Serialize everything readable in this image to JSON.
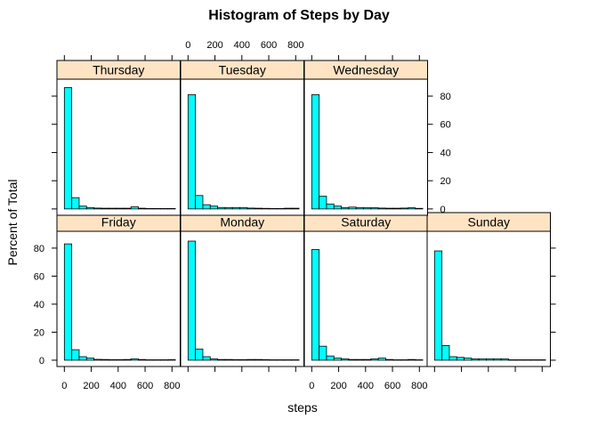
{
  "chart_data": {
    "type": "bar",
    "title": "Histogram of Steps by Day",
    "xlabel": "steps",
    "ylabel": "Percent of Total",
    "xlim": [
      -55,
      861
    ],
    "ylim": [
      -4.5,
      92
    ],
    "bin_width": 55,
    "bin_starts": [
      0,
      55,
      110,
      165,
      220,
      275,
      330,
      385,
      440,
      495,
      550,
      605,
      660,
      715,
      770
    ],
    "xticks": [
      0,
      200,
      400,
      600,
      800
    ],
    "yticks": [
      0,
      20,
      40,
      60,
      80
    ],
    "bar_color": "#00ffff",
    "strip_color": "#ffe4c4",
    "panels": [
      {
        "name": "Friday",
        "values": [
          83,
          7.5,
          2.5,
          1.5,
          0.6,
          0.5,
          0.4,
          0.4,
          0.5,
          1.0,
          0.5,
          0.3,
          0.3,
          0.3,
          0.4
        ]
      },
      {
        "name": "Monday",
        "values": [
          85,
          8,
          2.5,
          1,
          0.5,
          0.5,
          0.4,
          0.4,
          0.5,
          0.5,
          0.4,
          0.3,
          0.3,
          0.3,
          0.3
        ]
      },
      {
        "name": "Saturday",
        "values": [
          79,
          10,
          3,
          1.5,
          1,
          0.5,
          0.5,
          0.5,
          1,
          1.5,
          0.5,
          0.3,
          0.3,
          0.5,
          0.3
        ]
      },
      {
        "name": "Sunday",
        "values": [
          78,
          10.5,
          2.5,
          2,
          1.5,
          1,
          1,
          1,
          1,
          1,
          0.3,
          0.3,
          0.3,
          0.3,
          0.3
        ]
      },
      {
        "name": "Thursday",
        "values": [
          86,
          8,
          2,
          1,
          0.6,
          0.5,
          0.5,
          0.5,
          0.5,
          1.5,
          0.5,
          0.3,
          0.3,
          0.3,
          0.3
        ]
      },
      {
        "name": "Tuesday",
        "values": [
          81,
          9.5,
          3,
          2,
          1,
          1,
          1,
          1,
          0.6,
          0.5,
          0.4,
          0.3,
          0.3,
          0.5,
          0.5
        ]
      },
      {
        "name": "Wednesday",
        "values": [
          81,
          9,
          3.5,
          2,
          1,
          1.3,
          1,
          0.8,
          0.8,
          0.6,
          0.5,
          0.5,
          0.6,
          0.8,
          0.4
        ]
      }
    ]
  }
}
